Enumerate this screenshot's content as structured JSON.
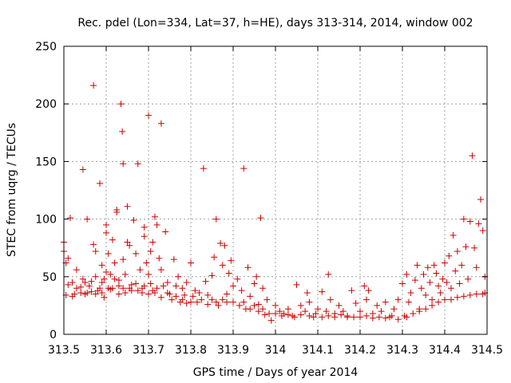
{
  "chart_data": {
    "type": "scatter",
    "title": "Rec. pdel (Lon=334, Lat=37, h=HE), days 313-314, 2014, window 002",
    "xlabel": "GPS time / Days of year 2014",
    "ylabel": "STEC from uqrg / TECUs",
    "xlim": [
      313.5,
      314.5
    ],
    "ylim": [
      0,
      250
    ],
    "xticks": [
      313.5,
      313.6,
      313.7,
      313.8,
      313.9,
      314.0,
      314.1,
      314.2,
      314.3,
      314.4,
      314.5
    ],
    "xtick_labels": [
      "313.5",
      "313.6",
      "313.7",
      "313.8",
      "313.9",
      "314",
      "314.1",
      "314.2",
      "314.3",
      "314.4",
      "314.5"
    ],
    "yticks": [
      0,
      50,
      100,
      150,
      200,
      250
    ],
    "ytick_labels": [
      "0",
      "50",
      "100",
      "150",
      "200",
      "250"
    ],
    "grid": true,
    "marker": "+",
    "color": "#cc0000",
    "series": [
      {
        "name": "",
        "points": [
          [
            313.5,
            80
          ],
          [
            313.5,
            72
          ],
          [
            313.505,
            34
          ],
          [
            313.51,
            66
          ],
          [
            313.515,
            101
          ],
          [
            313.52,
            33
          ],
          [
            313.52,
            45
          ],
          [
            313.525,
            35
          ],
          [
            313.53,
            56
          ],
          [
            313.54,
            36
          ],
          [
            313.545,
            143
          ],
          [
            313.545,
            48
          ],
          [
            313.55,
            35
          ],
          [
            313.555,
            100
          ],
          [
            313.56,
            42
          ],
          [
            313.565,
            37
          ],
          [
            313.57,
            216
          ],
          [
            313.57,
            78
          ],
          [
            313.575,
            72
          ],
          [
            313.575,
            50
          ],
          [
            313.58,
            38
          ],
          [
            313.585,
            131
          ],
          [
            313.59,
            60
          ],
          [
            313.59,
            45
          ],
          [
            313.595,
            32
          ],
          [
            313.6,
            95
          ],
          [
            313.6,
            88
          ],
          [
            313.605,
            70
          ],
          [
            313.61,
            52
          ],
          [
            313.61,
            39
          ],
          [
            313.615,
            82
          ],
          [
            313.62,
            62
          ],
          [
            313.625,
            106
          ],
          [
            313.625,
            108
          ],
          [
            313.63,
            47
          ],
          [
            313.63,
            35
          ],
          [
            313.635,
            200
          ],
          [
            313.638,
            176
          ],
          [
            313.64,
            148
          ],
          [
            313.64,
            65
          ],
          [
            313.645,
            52
          ],
          [
            313.65,
            111
          ],
          [
            313.65,
            80
          ],
          [
            313.655,
            77
          ],
          [
            313.66,
            43
          ],
          [
            313.665,
            99
          ],
          [
            313.67,
            70
          ],
          [
            313.675,
            148
          ],
          [
            313.68,
            56
          ],
          [
            313.685,
            40
          ],
          [
            313.69,
            93
          ],
          [
            313.69,
            85
          ],
          [
            313.695,
            62
          ],
          [
            313.7,
            190
          ],
          [
            313.7,
            52
          ],
          [
            313.705,
            72
          ],
          [
            313.71,
            80
          ],
          [
            313.71,
            38
          ],
          [
            313.715,
            102
          ],
          [
            313.72,
            95
          ],
          [
            313.725,
            66
          ],
          [
            313.73,
            183
          ],
          [
            313.73,
            56
          ],
          [
            313.74,
            89
          ],
          [
            313.745,
            45
          ],
          [
            313.75,
            35
          ],
          [
            313.76,
            65
          ],
          [
            313.765,
            42
          ],
          [
            313.77,
            50
          ],
          [
            313.78,
            30
          ],
          [
            313.785,
            34
          ],
          [
            313.79,
            45
          ],
          [
            313.8,
            62
          ],
          [
            313.8,
            28
          ],
          [
            313.81,
            38
          ],
          [
            313.82,
            36
          ],
          [
            313.83,
            144
          ],
          [
            313.835,
            46
          ],
          [
            313.84,
            34
          ],
          [
            313.85,
            51
          ],
          [
            313.855,
            67
          ],
          [
            313.86,
            100
          ],
          [
            313.86,
            28
          ],
          [
            313.87,
            79
          ],
          [
            313.875,
            60
          ],
          [
            313.88,
            77
          ],
          [
            313.885,
            35
          ],
          [
            313.89,
            53
          ],
          [
            313.895,
            64
          ],
          [
            313.9,
            42
          ],
          [
            313.91,
            48
          ],
          [
            313.92,
            38
          ],
          [
            313.925,
            144
          ],
          [
            313.93,
            22
          ],
          [
            313.935,
            58
          ],
          [
            313.94,
            33
          ],
          [
            313.95,
            44
          ],
          [
            313.955,
            50
          ],
          [
            313.96,
            26
          ],
          [
            313.965,
            101
          ],
          [
            313.97,
            40
          ],
          [
            313.975,
            17
          ],
          [
            313.98,
            30
          ],
          [
            313.99,
            12
          ],
          [
            314.0,
            25
          ],
          [
            314.01,
            20
          ],
          [
            314.02,
            18
          ],
          [
            314.03,
            22
          ],
          [
            314.04,
            16
          ],
          [
            314.05,
            43
          ],
          [
            314.06,
            25
          ],
          [
            314.07,
            20
          ],
          [
            314.075,
            36
          ],
          [
            314.08,
            28
          ],
          [
            314.09,
            15
          ],
          [
            314.1,
            22
          ],
          [
            314.11,
            37
          ],
          [
            314.12,
            20
          ],
          [
            314.125,
            52
          ],
          [
            314.13,
            30
          ],
          [
            314.14,
            18
          ],
          [
            314.15,
            25
          ],
          [
            314.16,
            20
          ],
          [
            314.17,
            15
          ],
          [
            314.18,
            38
          ],
          [
            314.19,
            27
          ],
          [
            314.2,
            20
          ],
          [
            314.21,
            42
          ],
          [
            314.215,
            30
          ],
          [
            314.22,
            38
          ],
          [
            314.23,
            18
          ],
          [
            314.24,
            25
          ],
          [
            314.25,
            20
          ],
          [
            314.26,
            28
          ],
          [
            314.27,
            15
          ],
          [
            314.28,
            22
          ],
          [
            314.29,
            30
          ],
          [
            314.3,
            44
          ],
          [
            314.305,
            16
          ],
          [
            314.31,
            52
          ],
          [
            314.315,
            28
          ],
          [
            314.32,
            36
          ],
          [
            314.33,
            47
          ],
          [
            314.335,
            60
          ],
          [
            314.34,
            22
          ],
          [
            314.345,
            40
          ],
          [
            314.35,
            52
          ],
          [
            314.355,
            34
          ],
          [
            314.36,
            58
          ],
          [
            314.365,
            45
          ],
          [
            314.37,
            30
          ],
          [
            314.375,
            60
          ],
          [
            314.38,
            53
          ],
          [
            314.385,
            42
          ],
          [
            314.39,
            36
          ],
          [
            314.395,
            48
          ],
          [
            314.4,
            62
          ],
          [
            314.405,
            45
          ],
          [
            314.41,
            68
          ],
          [
            314.415,
            40
          ],
          [
            314.42,
            86
          ],
          [
            314.425,
            55
          ],
          [
            314.43,
            72
          ],
          [
            314.435,
            44
          ],
          [
            314.44,
            60
          ],
          [
            314.445,
            100
          ],
          [
            314.45,
            76
          ],
          [
            314.455,
            48
          ],
          [
            314.46,
            98
          ],
          [
            314.465,
            155
          ],
          [
            314.47,
            75
          ],
          [
            314.475,
            58
          ],
          [
            314.48,
            96
          ],
          [
            314.485,
            117
          ],
          [
            314.49,
            90
          ],
          [
            314.495,
            50
          ],
          [
            314.495,
            36
          ],
          [
            313.505,
            62
          ],
          [
            313.51,
            43
          ],
          [
            313.53,
            40
          ],
          [
            313.54,
            41
          ],
          [
            313.55,
            45
          ],
          [
            313.555,
            36
          ],
          [
            313.565,
            46
          ],
          [
            313.575,
            35
          ],
          [
            313.585,
            40
          ],
          [
            313.59,
            36
          ],
          [
            313.595,
            48
          ],
          [
            313.6,
            54
          ],
          [
            313.605,
            40
          ],
          [
            313.615,
            40
          ],
          [
            313.62,
            48
          ],
          [
            313.63,
            42
          ],
          [
            313.64,
            40
          ],
          [
            313.645,
            36
          ],
          [
            313.655,
            40
          ],
          [
            313.66,
            38
          ],
          [
            313.67,
            44
          ],
          [
            313.675,
            38
          ],
          [
            313.685,
            36
          ],
          [
            313.69,
            42
          ],
          [
            313.7,
            35
          ],
          [
            313.705,
            44
          ],
          [
            313.715,
            36
          ],
          [
            313.72,
            40
          ],
          [
            313.73,
            32
          ],
          [
            313.735,
            42
          ],
          [
            313.745,
            36
          ],
          [
            313.755,
            30
          ],
          [
            313.765,
            33
          ],
          [
            313.775,
            28
          ],
          [
            313.78,
            40
          ],
          [
            313.79,
            27
          ],
          [
            313.805,
            33
          ],
          [
            313.815,
            28
          ],
          [
            313.825,
            30
          ],
          [
            313.84,
            26
          ],
          [
            313.85,
            30
          ],
          [
            313.865,
            25
          ],
          [
            313.875,
            30
          ],
          [
            313.885,
            28
          ],
          [
            313.9,
            28
          ],
          [
            313.915,
            25
          ],
          [
            313.925,
            28
          ],
          [
            313.94,
            22
          ],
          [
            313.95,
            25
          ],
          [
            313.96,
            20
          ],
          [
            313.97,
            22
          ],
          [
            313.985,
            18
          ],
          [
            314.0,
            18
          ],
          [
            314.015,
            16
          ],
          [
            314.03,
            17
          ],
          [
            314.045,
            15
          ],
          [
            314.06,
            17
          ],
          [
            314.08,
            16
          ],
          [
            314.095,
            18
          ],
          [
            314.11,
            15
          ],
          [
            314.125,
            16
          ],
          [
            314.14,
            15
          ],
          [
            314.155,
            17
          ],
          [
            314.17,
            16
          ],
          [
            314.185,
            15
          ],
          [
            314.2,
            15
          ],
          [
            314.215,
            16
          ],
          [
            314.23,
            14
          ],
          [
            314.245,
            15
          ],
          [
            314.26,
            14
          ],
          [
            314.275,
            16
          ],
          [
            314.29,
            13
          ],
          [
            314.31,
            15
          ],
          [
            314.325,
            18
          ],
          [
            314.34,
            20
          ],
          [
            314.355,
            22
          ],
          [
            314.37,
            25
          ],
          [
            314.385,
            28
          ],
          [
            314.4,
            30
          ],
          [
            314.415,
            30
          ],
          [
            314.43,
            32
          ],
          [
            314.445,
            33
          ],
          [
            314.46,
            34
          ],
          [
            314.475,
            35
          ],
          [
            314.49,
            35
          ]
        ]
      }
    ]
  }
}
